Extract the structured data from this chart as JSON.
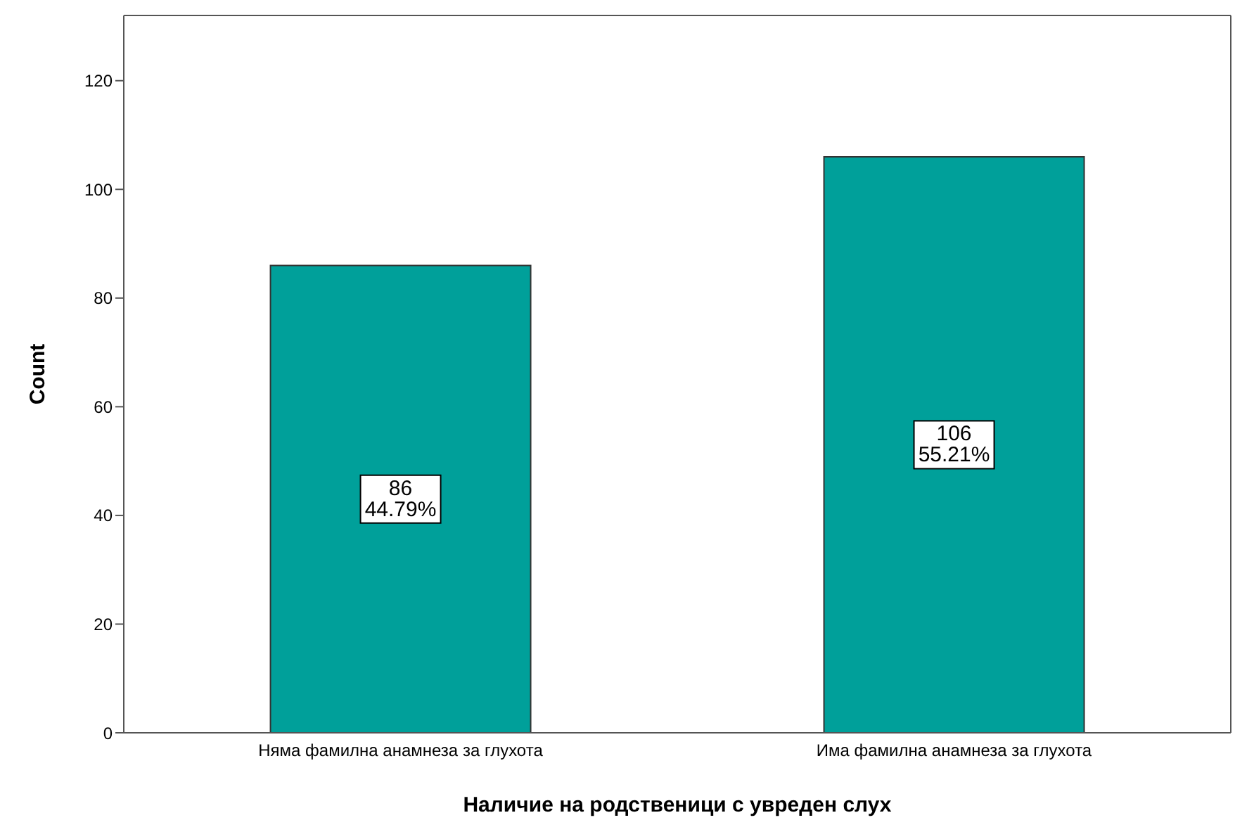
{
  "chart_data": {
    "type": "bar",
    "xlabel": "Наличие на родственици с увреден слух",
    "ylabel": "Count",
    "categories": [
      "Няма фамилна анамнеза за глухота",
      "Има фамилна анамнеза за глухота"
    ],
    "values": [
      86,
      106
    ],
    "color": "#00a09a",
    "value_labels": [
      "86\n44.79%",
      "106\n55.21%"
    ],
    "ylim": [
      0,
      132
    ],
    "yticks": [
      0,
      20,
      40,
      60,
      80,
      100,
      120
    ]
  }
}
